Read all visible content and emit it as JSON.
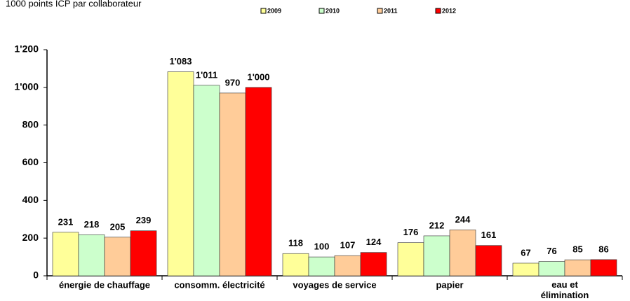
{
  "chart_data": {
    "type": "bar",
    "title": "1000 points ICP par collaborateur",
    "categories": [
      "énergie de chauffage",
      "consomm. électricité",
      "voyages de service",
      "papier",
      "eau et\nélimination"
    ],
    "series": [
      {
        "name": "2009",
        "color": "#ffff99",
        "values": [
          231,
          1083,
          118,
          176,
          67
        ],
        "value_labels": [
          "231",
          "1'083",
          "118",
          "176",
          "67"
        ]
      },
      {
        "name": "2010",
        "color": "#ccffcc",
        "values": [
          218,
          1011,
          100,
          212,
          76
        ],
        "value_labels": [
          "218",
          "1'011",
          "100",
          "212",
          "76"
        ]
      },
      {
        "name": "2011",
        "color": "#ffcc99",
        "values": [
          205,
          970,
          107,
          244,
          85
        ],
        "value_labels": [
          "205",
          "970",
          "107",
          "244",
          "85"
        ]
      },
      {
        "name": "2012",
        "color": "#ff0000",
        "values": [
          239,
          1000,
          124,
          161,
          86
        ],
        "value_labels": [
          "239",
          "1'000",
          "124",
          "161",
          "86"
        ]
      }
    ],
    "ylim": [
      0,
      1200
    ],
    "yticks": [
      0,
      200,
      400,
      600,
      800,
      {
        "value": 1000,
        "label": "1'000"
      },
      {
        "value": 1200,
        "label": "1'200"
      }
    ],
    "grid": false
  }
}
